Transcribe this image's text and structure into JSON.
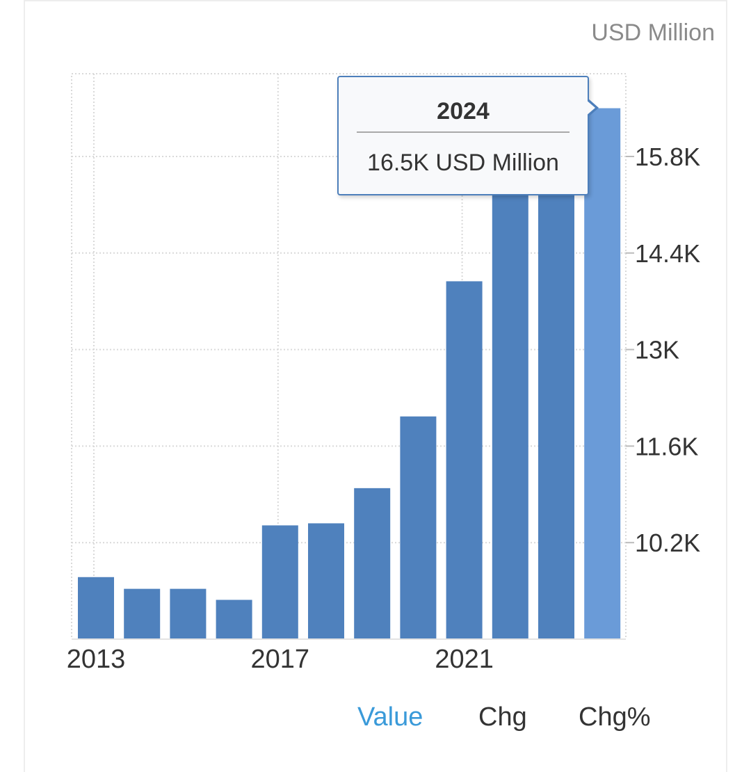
{
  "chart_data": {
    "type": "bar",
    "unit_label": "USD Million",
    "categories": [
      "2013",
      "2014",
      "2015",
      "2016",
      "2017",
      "2018",
      "2019",
      "2020",
      "2021",
      "2022",
      "2023",
      "2024"
    ],
    "values": [
      9700,
      9530,
      9530,
      9370,
      10450,
      10480,
      10990,
      12030,
      13990,
      16200,
      16200,
      16500
    ],
    "x_tick_labels": [
      {
        "index": 0,
        "label": "2013"
      },
      {
        "index": 4,
        "label": "2017"
      },
      {
        "index": 8,
        "label": "2021"
      }
    ],
    "y_ticks": [
      10200,
      11600,
      13000,
      14400,
      15800
    ],
    "y_tick_labels": [
      "10.2K",
      "11.6K",
      "13K",
      "14.4K",
      "15.8K"
    ],
    "ylim": [
      8800,
      17000
    ],
    "highlight_index": 11,
    "colors": {
      "bar": "#4f81bd",
      "bar_highlight": "#6a9bd8",
      "grid": "#d9d9d9",
      "axis_text": "#333333"
    }
  },
  "tooltip": {
    "year": "2024",
    "value": "16.5K USD Million"
  },
  "tabs": {
    "value": "Value",
    "chg": "Chg",
    "chg_pct": "Chg%"
  }
}
